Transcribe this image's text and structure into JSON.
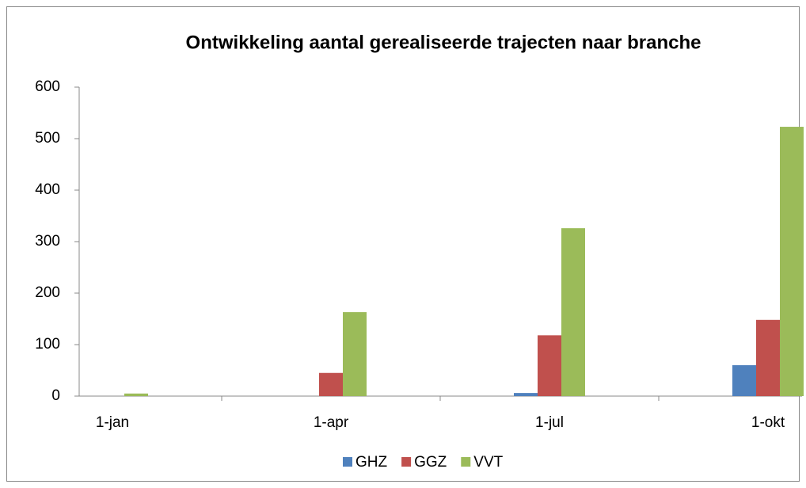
{
  "chart_data": {
    "type": "bar",
    "title": "Ontwikkeling aantal gerealiseerde trajecten naar branche",
    "categories": [
      "1-jan",
      "1-apr",
      "1-jul",
      "1-okt"
    ],
    "series": [
      {
        "name": "GHZ",
        "color": "#4f81bd",
        "values": [
          0,
          0,
          6,
          60
        ]
      },
      {
        "name": "GGZ",
        "color": "#c0504d",
        "values": [
          0,
          45,
          118,
          148
        ]
      },
      {
        "name": "VVT",
        "color": "#9bbb59",
        "values": [
          5,
          163,
          326,
          523
        ]
      }
    ],
    "ylim": [
      0,
      600
    ],
    "yticks": [
      0,
      100,
      200,
      300,
      400,
      500,
      600
    ],
    "grid": false
  }
}
